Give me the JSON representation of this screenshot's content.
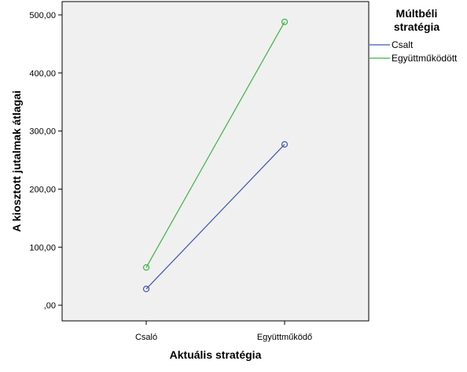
{
  "chart_data": {
    "type": "line",
    "title": "",
    "categories": [
      "Csaló",
      "Együttműködő"
    ],
    "xlabel": "Aktuális stratégia",
    "ylabel": "A kiosztott jutalmak átlagai",
    "ylim": [
      -27,
      523
    ],
    "yticks": [
      0,
      100,
      200,
      300,
      400,
      500
    ],
    "ytick_labels": [
      ",00",
      "100,00",
      "200,00",
      "300,00",
      "400,00",
      "500,00"
    ],
    "grid": false,
    "plot_background": "#f0f0f0",
    "legend": {
      "title_lines": [
        "Múltbéli",
        "stratégia"
      ],
      "placement": "right"
    },
    "series": [
      {
        "name": "Csalt",
        "values": [
          28,
          277
        ],
        "color": "#3d56b2"
      },
      {
        "name": "Együttműködött",
        "values": [
          65,
          488
        ],
        "color": "#3cb442"
      }
    ]
  }
}
